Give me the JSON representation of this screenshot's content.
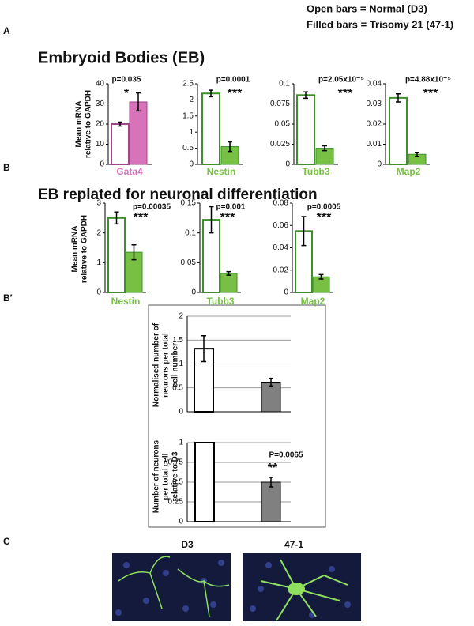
{
  "legend": [
    "Open bars = Normal (D3)",
    "Filled bars = Trisomy 21 (47-1)"
  ],
  "panel_labels": [
    "A",
    "B",
    "B′",
    "C"
  ],
  "panel_titles": [
    "Embryoid Bodies (EB)",
    "EB replated for neuronal differentiation"
  ],
  "image_labels": [
    "D3",
    "47-1"
  ],
  "chart_data": [
    {
      "type": "bar",
      "xlabel": "Gata4",
      "ylabel": [
        "Mean mRNA",
        "relative to GAPDH"
      ],
      "annotation": "p=0.035",
      "significance": "*",
      "color": "#d873b9",
      "edgecolor": "#a0468a",
      "values": [
        20,
        31
      ],
      "errors": [
        1,
        4.5
      ],
      "ylim": [
        0,
        40
      ],
      "yticks": [
        0,
        10,
        20,
        30,
        40
      ],
      "grid": false
    },
    {
      "type": "bar",
      "xlabel": "Nestin",
      "annotation": "p=0.0001",
      "significance": "***",
      "color": "#77c043",
      "edgecolor": "#3f8f2c",
      "values": [
        2.2,
        0.55
      ],
      "errors": [
        0.1,
        0.15
      ],
      "ylim": [
        0,
        2.5
      ],
      "yticks": [
        0,
        0.5,
        1,
        1.5,
        2,
        2.5
      ],
      "grid": false
    },
    {
      "type": "bar",
      "xlabel": "Tubb3",
      "annotation": "p=2.05x10⁻⁵",
      "significance": "***",
      "color": "#77c043",
      "edgecolor": "#3f8f2c",
      "values": [
        0.086,
        0.02
      ],
      "errors": [
        0.004,
        0.003
      ],
      "ylim": [
        0,
        0.1
      ],
      "yticks": [
        0,
        0.025,
        0.05,
        0.075,
        0.1
      ],
      "grid": false
    },
    {
      "type": "bar",
      "xlabel": "Map2",
      "annotation": "p=4.88x10⁻⁵",
      "significance": "***",
      "color": "#77c043",
      "edgecolor": "#3f8f2c",
      "values": [
        0.033,
        0.005
      ],
      "errors": [
        0.002,
        0.001
      ],
      "ylim": [
        0,
        0.04
      ],
      "yticks": [
        0,
        0.01,
        0.02,
        0.03,
        0.04
      ],
      "grid": false
    },
    {
      "type": "bar",
      "xlabel": "Nestin",
      "ylabel": [
        "Mean mRNA",
        "relative to GAPDH"
      ],
      "annotation": "p=0.00035",
      "significance": "***",
      "color": "#77c043",
      "edgecolor": "#3f8f2c",
      "values": [
        2.5,
        1.35
      ],
      "errors": [
        0.2,
        0.25
      ],
      "ylim": [
        0,
        3
      ],
      "yticks": [
        0,
        1,
        2,
        3
      ],
      "grid": false
    },
    {
      "type": "bar",
      "xlabel": "Tubb3",
      "annotation": "p=0.001",
      "significance": "***",
      "color": "#77c043",
      "edgecolor": "#3f8f2c",
      "values": [
        0.122,
        0.032
      ],
      "errors": [
        0.022,
        0.003
      ],
      "ylim": [
        0,
        0.15
      ],
      "yticks": [
        0,
        0.05,
        0.1,
        0.15
      ],
      "grid": false
    },
    {
      "type": "bar",
      "xlabel": "Map2",
      "annotation": "p=0.0005",
      "significance": "***",
      "color": "#77c043",
      "edgecolor": "#3f8f2c",
      "values": [
        0.055,
        0.014
      ],
      "errors": [
        0.013,
        0.002
      ],
      "ylim": [
        0,
        0.08
      ],
      "yticks": [
        0,
        0.02,
        0.04,
        0.06,
        0.08
      ],
      "grid": false
    },
    {
      "type": "bar",
      "ylabel": [
        "Normalised number of",
        "neurons per total",
        "cell number"
      ],
      "color": "#808080",
      "edgecolor": "#000000",
      "values": [
        1.32,
        0.62
      ],
      "errors": [
        0.27,
        0.08
      ],
      "ylim": [
        0,
        2
      ],
      "yticks": [
        0,
        0.5,
        1,
        1.5,
        2
      ],
      "grid": true
    },
    {
      "type": "bar",
      "ylabel": [
        "Number of neurons",
        "per total cell",
        "relative to D3"
      ],
      "annotation": "P=0.0065",
      "significance": "**",
      "color": "#808080",
      "edgecolor": "#000000",
      "values": [
        1,
        0.5
      ],
      "errors": [
        null,
        0.06
      ],
      "ylim": [
        0,
        1
      ],
      "yticks": [
        0,
        0.25,
        0.5,
        0.75,
        1
      ],
      "grid": true
    }
  ]
}
